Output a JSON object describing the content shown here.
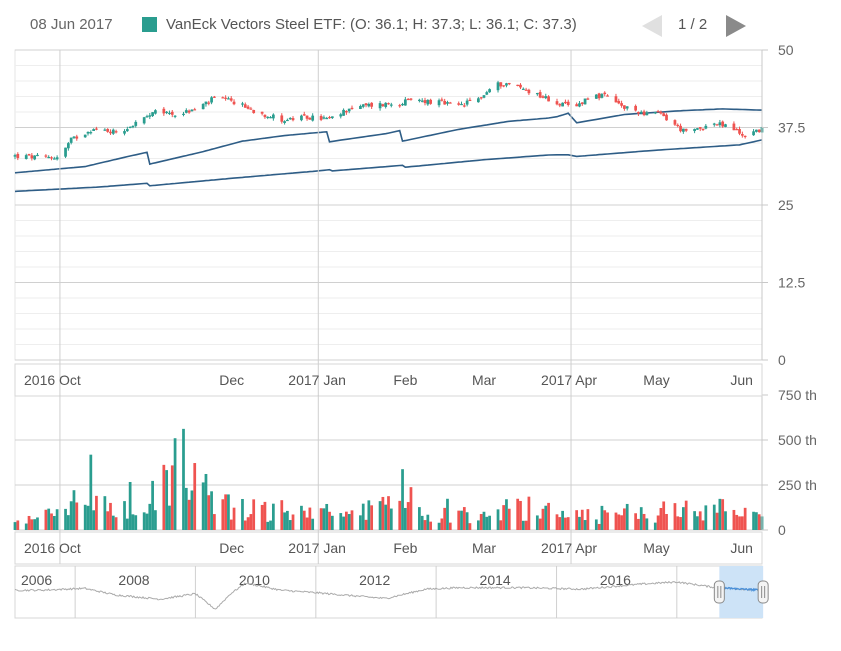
{
  "legend": {
    "date": "08 Jun 2017",
    "series_text": "VanEck Vectors Steel ETF: (O: 36.1; H: 37.3; L: 36.1; C: 37.3)",
    "page_label": "1 / 2",
    "swatch_color": "#2a9d8f",
    "prev_icon": "triangle-left-icon",
    "next_icon": "triangle-right-icon"
  },
  "colors": {
    "up": "#2a9d8f",
    "down": "#ef5350",
    "line": "#2e5d86",
    "grid": "#e2e2e2",
    "nav_line": "#aaaaaa",
    "nav_highlight": "#cde3f7",
    "nav_highlight_line": "#4a90d9"
  },
  "chart_data": {
    "type": "candlestick",
    "title": "",
    "series_name": "VanEck Vectors Steel ETF",
    "price_axis": {
      "ticks": [
        "50",
        "37.5",
        "25",
        "12.5",
        "0"
      ],
      "ylim": [
        0,
        50
      ],
      "position": "right"
    },
    "volume_axis": {
      "ticks": [
        "750 th",
        "500 th",
        "250 th",
        "0"
      ],
      "ylim": [
        0,
        750
      ],
      "unit": "th"
    },
    "date_axis": {
      "ticks": [
        "2016 Oct",
        "Dec",
        "2017 Jan",
        "Feb",
        "Mar",
        "2017 Apr",
        "May",
        "Jun"
      ],
      "range": [
        "2016-09-15",
        "2017-06-08"
      ]
    },
    "navigator": {
      "ticks": [
        "2006",
        "2008",
        "2010",
        "2012",
        "2014",
        "2016"
      ],
      "range": [
        "2005",
        "2017-06"
      ],
      "selected": [
        "2016-09-15",
        "2017-06-08"
      ]
    },
    "lines": [
      {
        "anchors": [
          [
            "2016-09-15",
            30.2
          ],
          [
            "2016-10-10",
            31.2
          ],
          [
            "2016-10-25",
            32.8
          ],
          [
            "2016-11-01",
            33.5
          ],
          [
            "2016-11-02",
            31.6
          ],
          [
            "2016-11-20",
            33.5
          ],
          [
            "2016-12-05",
            35.3
          ],
          [
            "2016-12-20",
            36.2
          ],
          [
            "2017-01-01",
            36.7
          ],
          [
            "2017-01-04",
            36.8
          ],
          [
            "2017-01-05",
            35.2
          ],
          [
            "2017-01-25",
            36.5
          ],
          [
            "2017-01-30",
            37.0
          ],
          [
            "2017-01-31",
            35.3
          ],
          [
            "2017-02-20",
            37.2
          ],
          [
            "2017-03-10",
            38.5
          ],
          [
            "2017-03-26",
            39.1
          ],
          [
            "2017-03-31",
            39.8
          ],
          [
            "2017-04-01",
            38.1
          ],
          [
            "2017-04-20",
            39.6
          ],
          [
            "2017-05-10",
            40.2
          ],
          [
            "2017-05-25",
            40.5
          ],
          [
            "2017-06-08",
            40.3
          ]
        ]
      },
      {
        "anchors": [
          [
            "2016-09-15",
            27.2
          ],
          [
            "2016-10-15",
            27.9
          ],
          [
            "2016-11-01",
            28.5
          ],
          [
            "2016-11-02",
            28.1
          ],
          [
            "2016-12-01",
            29.3
          ],
          [
            "2017-01-01",
            30.5
          ],
          [
            "2017-01-05",
            30.7
          ],
          [
            "2017-01-06",
            30.5
          ],
          [
            "2017-01-31",
            31.4
          ],
          [
            "2017-02-01",
            31.1
          ],
          [
            "2017-03-01",
            32.3
          ],
          [
            "2017-03-25",
            33.1
          ],
          [
            "2017-04-01",
            33.1
          ],
          [
            "2017-04-02",
            32.8
          ],
          [
            "2017-04-30",
            33.8
          ],
          [
            "2017-05-31",
            34.7
          ],
          [
            "2017-06-08",
            35.5
          ]
        ]
      }
    ],
    "close_anchors": [
      [
        "2016-09-15",
        32.9
      ],
      [
        "2016-09-25",
        32.6
      ],
      [
        "2016-10-01",
        32.8
      ],
      [
        "2016-10-05",
        35.5
      ],
      [
        "2016-10-12",
        37.2
      ],
      [
        "2016-10-22",
        36.8
      ],
      [
        "2016-10-28",
        38.2
      ],
      [
        "2016-11-05",
        40.1
      ],
      [
        "2016-11-12",
        39.6
      ],
      [
        "2016-11-18",
        40.4
      ],
      [
        "2016-11-25",
        42.2
      ],
      [
        "2016-12-02",
        41.6
      ],
      [
        "2016-12-10",
        40.0
      ],
      [
        "2016-12-20",
        38.7
      ],
      [
        "2016-12-28",
        39.1
      ],
      [
        "2017-01-06",
        38.9
      ],
      [
        "2017-01-12",
        40.6
      ],
      [
        "2017-01-20",
        41.1
      ],
      [
        "2017-01-28",
        41.4
      ],
      [
        "2017-02-05",
        41.9
      ],
      [
        "2017-02-12",
        41.6
      ],
      [
        "2017-02-20",
        40.9
      ],
      [
        "2017-02-28",
        42.4
      ],
      [
        "2017-03-05",
        44.4
      ],
      [
        "2017-03-10",
        44.6
      ],
      [
        "2017-03-14",
        43.9
      ],
      [
        "2017-03-20",
        42.9
      ],
      [
        "2017-03-26",
        41.6
      ],
      [
        "2017-04-02",
        40.6
      ],
      [
        "2017-04-08",
        42.8
      ],
      [
        "2017-04-14",
        42.4
      ],
      [
        "2017-04-20",
        40.6
      ],
      [
        "2017-04-28",
        39.8
      ],
      [
        "2017-05-03",
        39.6
      ],
      [
        "2017-05-08",
        37.9
      ],
      [
        "2017-05-12",
        36.6
      ],
      [
        "2017-05-17",
        37.4
      ],
      [
        "2017-05-22",
        38.1
      ],
      [
        "2017-05-28",
        37.6
      ],
      [
        "2017-06-01",
        36.2
      ],
      [
        "2017-06-08",
        37.3
      ]
    ],
    "volume_anchors": [
      [
        "2016-09-15",
        40
      ],
      [
        "2016-10-05",
        150
      ],
      [
        "2016-10-15",
        180
      ],
      [
        "2016-11-01",
        110
      ],
      [
        "2016-11-08",
        330
      ],
      [
        "2016-11-14",
        500
      ],
      [
        "2016-11-18",
        300
      ],
      [
        "2016-12-01",
        150
      ],
      [
        "2016-12-20",
        110
      ],
      [
        "2017-01-10",
        100
      ],
      [
        "2017-01-25",
        140
      ],
      [
        "2017-02-10",
        80
      ],
      [
        "2017-02-25",
        110
      ],
      [
        "2017-03-05",
        120
      ],
      [
        "2017-03-20",
        150
      ],
      [
        "2017-04-10",
        90
      ],
      [
        "2017-04-25",
        110
      ],
      [
        "2017-05-10",
        120
      ],
      [
        "2017-05-25",
        130
      ],
      [
        "2017-06-08",
        60
      ]
    ],
    "navigator_anchors": [
      [
        "2005-06",
        0.55
      ],
      [
        "2006-03",
        0.6
      ],
      [
        "2006-09",
        0.42
      ],
      [
        "2007-06",
        0.3
      ],
      [
        "2008-01",
        0.45
      ],
      [
        "2008-05",
        0.02
      ],
      [
        "2008-08",
        0.45
      ],
      [
        "2008-11",
        0.75
      ],
      [
        "2009-06",
        0.55
      ],
      [
        "2010-01",
        0.48
      ],
      [
        "2011-03",
        0.32
      ],
      [
        "2011-11",
        0.58
      ],
      [
        "2012-06",
        0.62
      ],
      [
        "2013-06",
        0.62
      ],
      [
        "2014-06",
        0.58
      ],
      [
        "2015-06",
        0.72
      ],
      [
        "2016-01",
        0.78
      ],
      [
        "2016-09",
        0.62
      ],
      [
        "2017-06",
        0.55
      ]
    ]
  }
}
